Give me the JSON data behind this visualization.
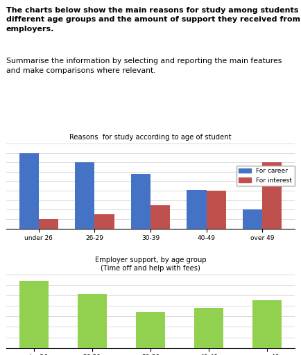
{
  "title_line1": "The charts below show the main reasons for study among students of",
  "title_line2": "different age groups and the amount of support they received from",
  "title_line3": "employers.",
  "subtitle_line1": "Summarise the information by selecting and reporting the main features",
  "subtitle_line2": "and make comparisons where relevant.",
  "chart1_title": "Reasons  for study according to age of student",
  "chart2_title": "Employer support, by age group\n(Time off and help with fees)",
  "age_groups": [
    "under 26",
    "26-29",
    "30-39",
    "40-49",
    "over 49"
  ],
  "career_values": [
    80,
    70,
    58,
    41,
    20
  ],
  "interest_values": [
    10,
    15,
    25,
    40,
    70
  ],
  "employer_values": [
    64,
    51,
    34,
    38,
    45
  ],
  "chart1_ylim": [
    0,
    90
  ],
  "chart1_yticks": [
    0,
    10,
    20,
    30,
    40,
    50,
    60,
    70,
    80,
    90
  ],
  "chart2_ylim": [
    0,
    70
  ],
  "chart2_yticks": [
    0,
    10,
    20,
    30,
    40,
    50,
    60,
    70
  ],
  "bar_width": 0.35,
  "career_color": "#4472C4",
  "interest_color": "#C0504D",
  "employer_color": "#92D050",
  "legend_labels": [
    "For career",
    "For interest"
  ],
  "background_color": "#ffffff",
  "grid_color": "#cccccc"
}
